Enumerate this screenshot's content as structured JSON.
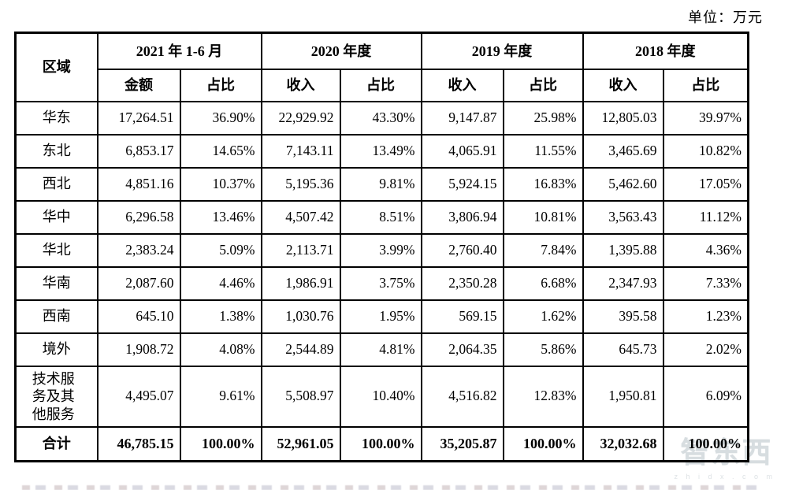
{
  "unit_label": "单位：万元",
  "table": {
    "region_header": "区域",
    "column_groups": [
      {
        "label": "2021 年 1-6 月",
        "sub": [
          "金额",
          "占比"
        ]
      },
      {
        "label": "2020 年度",
        "sub": [
          "收入",
          "占比"
        ]
      },
      {
        "label": "2019 年度",
        "sub": [
          "收入",
          "占比"
        ]
      },
      {
        "label": "2018 年度",
        "sub": [
          "收入",
          "占比"
        ]
      }
    ],
    "rows": [
      {
        "region": "华东",
        "values": [
          "17,264.51",
          "36.90%",
          "22,929.92",
          "43.30%",
          "9,147.87",
          "25.98%",
          "12,805.03",
          "39.97%"
        ]
      },
      {
        "region": "东北",
        "values": [
          "6,853.17",
          "14.65%",
          "7,143.11",
          "13.49%",
          "4,065.91",
          "11.55%",
          "3,465.69",
          "10.82%"
        ]
      },
      {
        "region": "西北",
        "values": [
          "4,851.16",
          "10.37%",
          "5,195.36",
          "9.81%",
          "5,924.15",
          "16.83%",
          "5,462.60",
          "17.05%"
        ]
      },
      {
        "region": "华中",
        "values": [
          "6,296.58",
          "13.46%",
          "4,507.42",
          "8.51%",
          "3,806.94",
          "10.81%",
          "3,563.43",
          "11.12%"
        ]
      },
      {
        "region": "华北",
        "values": [
          "2,383.24",
          "5.09%",
          "2,113.71",
          "3.99%",
          "2,760.40",
          "7.84%",
          "1,395.88",
          "4.36%"
        ]
      },
      {
        "region": "华南",
        "values": [
          "2,087.60",
          "4.46%",
          "1,986.91",
          "3.75%",
          "2,350.28",
          "6.68%",
          "2,347.93",
          "7.33%"
        ]
      },
      {
        "region": "西南",
        "values": [
          "645.10",
          "1.38%",
          "1,030.76",
          "1.95%",
          "569.15",
          "1.62%",
          "395.58",
          "1.23%"
        ]
      },
      {
        "region": "境外",
        "values": [
          "1,908.72",
          "4.08%",
          "2,544.89",
          "4.81%",
          "2,064.35",
          "5.86%",
          "645.73",
          "2.02%"
        ]
      },
      {
        "region": "技术服务及其他服务",
        "values": [
          "4,495.07",
          "9.61%",
          "5,508.97",
          "10.40%",
          "4,516.82",
          "12.83%",
          "1,950.81",
          "6.09%"
        ]
      }
    ],
    "total_row": {
      "region": "合计",
      "values": [
        "46,785.15",
        "100.00%",
        "52,961.05",
        "100.00%",
        "35,205.87",
        "100.00%",
        "32,032.68",
        "100.00%"
      ]
    }
  },
  "watermark": {
    "logo_text": "智东西",
    "domain_text": "z h i d x . c o m",
    "color": "#d7dde0"
  }
}
